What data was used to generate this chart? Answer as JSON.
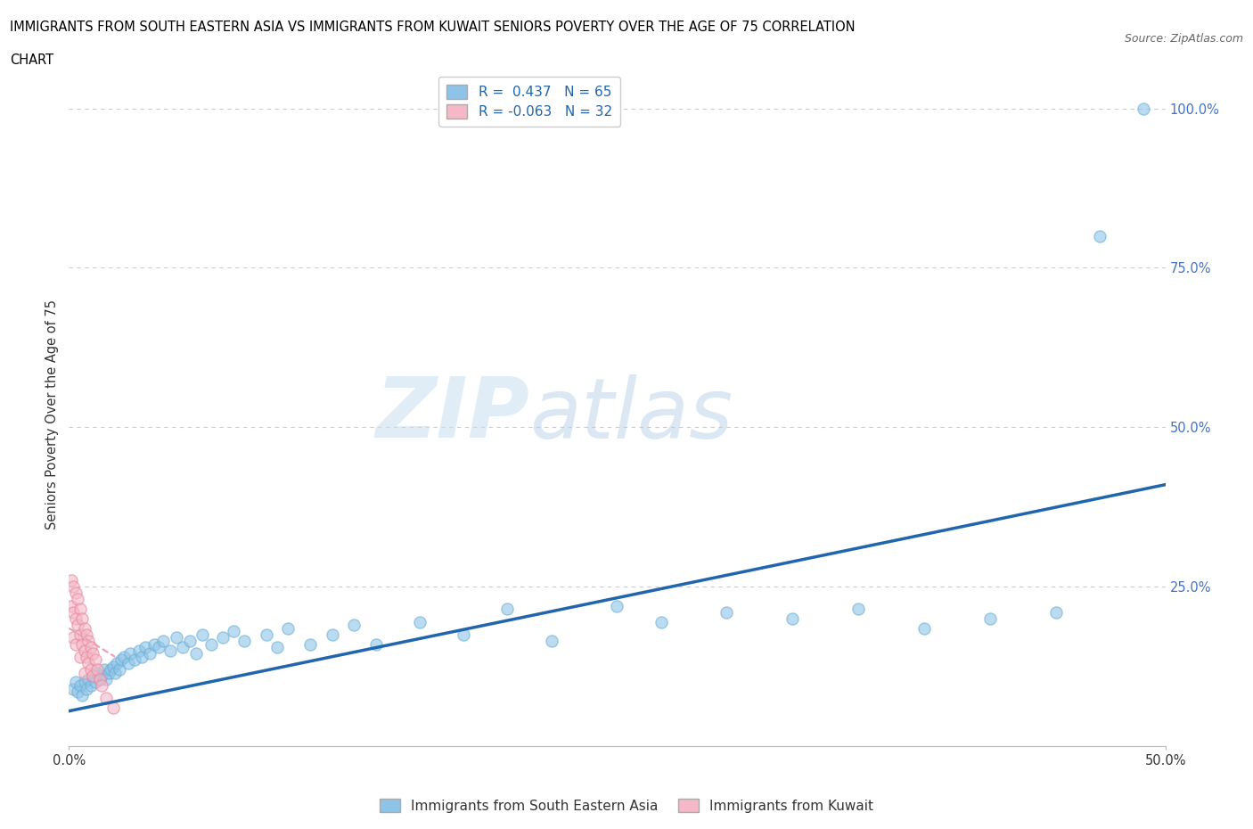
{
  "title_line1": "IMMIGRANTS FROM SOUTH EASTERN ASIA VS IMMIGRANTS FROM KUWAIT SENIORS POVERTY OVER THE AGE OF 75 CORRELATION",
  "title_line2": "CHART",
  "source": "Source: ZipAtlas.com",
  "ylabel": "Seniors Poverty Over the Age of 75",
  "xlim": [
    0.0,
    0.5
  ],
  "ylim": [
    0.0,
    1.04
  ],
  "ytick_positions": [
    0.25,
    0.5,
    0.75,
    1.0
  ],
  "ytick_labels": [
    "25.0%",
    "50.0%",
    "75.0%",
    "100.0%"
  ],
  "xtick_positions": [
    0.0,
    0.5
  ],
  "xtick_labels": [
    "0.0%",
    "50.0%"
  ],
  "grid_color": "#cccccc",
  "watermark_zip": "ZIP",
  "watermark_atlas": "atlas",
  "blue_color": "#8ec4e8",
  "blue_edge_color": "#6baed6",
  "pink_color": "#f4b8c8",
  "pink_edge_color": "#e8849a",
  "blue_line_color": "#2166ac",
  "pink_line_color": "#e8a0b0",
  "R_blue": 0.437,
  "N_blue": 65,
  "R_pink": -0.063,
  "N_pink": 32,
  "blue_scatter_x": [
    0.002,
    0.003,
    0.004,
    0.005,
    0.006,
    0.007,
    0.008,
    0.009,
    0.01,
    0.011,
    0.012,
    0.013,
    0.014,
    0.015,
    0.016,
    0.017,
    0.018,
    0.019,
    0.02,
    0.021,
    0.022,
    0.023,
    0.024,
    0.025,
    0.027,
    0.028,
    0.03,
    0.032,
    0.033,
    0.035,
    0.037,
    0.039,
    0.041,
    0.043,
    0.046,
    0.049,
    0.052,
    0.055,
    0.058,
    0.061,
    0.065,
    0.07,
    0.075,
    0.08,
    0.09,
    0.095,
    0.1,
    0.11,
    0.12,
    0.13,
    0.14,
    0.16,
    0.18,
    0.2,
    0.22,
    0.25,
    0.27,
    0.3,
    0.33,
    0.36,
    0.39,
    0.42,
    0.45,
    0.47,
    0.49
  ],
  "blue_scatter_y": [
    0.09,
    0.1,
    0.085,
    0.095,
    0.08,
    0.1,
    0.09,
    0.105,
    0.095,
    0.11,
    0.1,
    0.115,
    0.105,
    0.11,
    0.12,
    0.105,
    0.115,
    0.12,
    0.125,
    0.115,
    0.13,
    0.12,
    0.135,
    0.14,
    0.13,
    0.145,
    0.135,
    0.15,
    0.14,
    0.155,
    0.145,
    0.16,
    0.155,
    0.165,
    0.15,
    0.17,
    0.155,
    0.165,
    0.145,
    0.175,
    0.16,
    0.17,
    0.18,
    0.165,
    0.175,
    0.155,
    0.185,
    0.16,
    0.175,
    0.19,
    0.16,
    0.195,
    0.175,
    0.215,
    0.165,
    0.22,
    0.195,
    0.21,
    0.2,
    0.215,
    0.185,
    0.2,
    0.21,
    0.8,
    1.0
  ],
  "pink_scatter_x": [
    0.001,
    0.001,
    0.002,
    0.002,
    0.002,
    0.003,
    0.003,
    0.003,
    0.004,
    0.004,
    0.005,
    0.005,
    0.005,
    0.006,
    0.006,
    0.007,
    0.007,
    0.007,
    0.008,
    0.008,
    0.009,
    0.009,
    0.01,
    0.01,
    0.011,
    0.011,
    0.012,
    0.013,
    0.014,
    0.015,
    0.017,
    0.02
  ],
  "pink_scatter_y": [
    0.26,
    0.22,
    0.25,
    0.21,
    0.17,
    0.24,
    0.2,
    0.16,
    0.23,
    0.19,
    0.215,
    0.175,
    0.14,
    0.2,
    0.16,
    0.185,
    0.15,
    0.115,
    0.175,
    0.14,
    0.165,
    0.13,
    0.155,
    0.12,
    0.145,
    0.11,
    0.135,
    0.12,
    0.105,
    0.095,
    0.075,
    0.06
  ],
  "blue_trend_x": [
    0.0,
    0.5
  ],
  "blue_trend_y": [
    0.055,
    0.41
  ],
  "pink_trend_x": [
    0.0,
    0.021
  ],
  "pink_trend_y": [
    0.185,
    0.14
  ],
  "background_color": "#ffffff",
  "legend_blue_label": "Immigrants from South Eastern Asia",
  "legend_pink_label": "Immigrants from Kuwait"
}
